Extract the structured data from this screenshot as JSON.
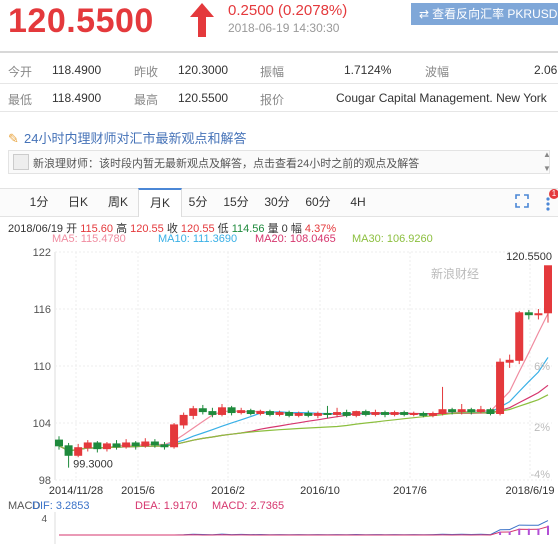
{
  "header": {
    "price": "120.5500",
    "change": "0.2500 (0.2078%)",
    "datetime": "2018-06-19 14:30:30",
    "reverse_button": "查看反向汇率 PKRUSD"
  },
  "quote": {
    "open_label": "今开",
    "open": "118.4900",
    "prev_close_label": "昨收",
    "prev_close": "120.3000",
    "amplitude_label": "振幅",
    "amplitude": "1.7124%",
    "wave_label": "波幅",
    "wave": "2.06",
    "low_label": "最低",
    "low": "118.4900",
    "high_label": "最高",
    "high": "120.5500",
    "quoter_label": "报价",
    "quoter": "Cougar Capital Management. New York"
  },
  "notice": {
    "title": "24小时内理财师对汇市最新观点和解答",
    "message": "新浪理财师：该时段内暂无最新观点及解答，点击查看24小时之前的观点及解答"
  },
  "tabs": [
    "1分",
    "日K",
    "周K",
    "月K",
    "5分",
    "15分",
    "30分",
    "60分",
    "4H"
  ],
  "active_tab": "月K",
  "badge_count": "1",
  "ohlc": {
    "date": "2018/06/19",
    "open_label": "开",
    "open": "115.60",
    "high_label": "高",
    "high": "120.55",
    "close_label": "收",
    "close": "120.55",
    "low_label": "低",
    "low": "114.56",
    "vol_label": "量",
    "vol": "0",
    "range_label": "幅",
    "range": "4.37%"
  },
  "ma": {
    "ma5": "MA5: 115.4780",
    "ma10": "MA10: 111.3690",
    "ma20": "MA20: 108.0465",
    "ma30": "MA30: 106.9260"
  },
  "macd": {
    "label": "MACD",
    "dif": "DIF: 3.2853",
    "dea": "DEA: 1.9170",
    "macd": "MACD: 2.7365",
    "axis_top": "4"
  },
  "colors": {
    "up": "#e4393c",
    "down": "#1e8a3c",
    "ma5": "#f08ca0",
    "ma10": "#3ab0e6",
    "ma20": "#d6366e",
    "ma30": "#8cbf3f"
  },
  "chart_data": {
    "type": "candlestick",
    "y_ticks": [
      "122",
      "116",
      "110",
      "104",
      "98"
    ],
    "pct_ticks": [
      "6%",
      "2%",
      "-4%"
    ],
    "x_ticks": [
      "2014/11/28",
      "2015/6",
      "2016/2",
      "2016/10",
      "2017/6",
      "2018/6/19"
    ],
    "ylim": [
      98,
      122
    ],
    "max_label": "120.5500",
    "min_label": "99.3000",
    "watermark": "新浪财经",
    "candles": [
      [
        102.2,
        101.6,
        102.6,
        101.2
      ],
      [
        101.6,
        100.6,
        101.9,
        99.3
      ],
      [
        100.6,
        101.4,
        101.8,
        100.4
      ],
      [
        101.4,
        101.9,
        102.2,
        101.0
      ],
      [
        101.9,
        101.3,
        102.1,
        100.9
      ],
      [
        101.3,
        101.8,
        102.0,
        101.0
      ],
      [
        101.8,
        101.5,
        102.2,
        101.2
      ],
      [
        101.5,
        101.9,
        102.3,
        101.3
      ],
      [
        101.9,
        101.6,
        102.1,
        101.2
      ],
      [
        101.6,
        102.0,
        102.4,
        101.4
      ],
      [
        102.0,
        101.7,
        102.3,
        101.4
      ],
      [
        101.7,
        101.5,
        102.0,
        101.2
      ],
      [
        101.5,
        103.8,
        104.0,
        101.3
      ],
      [
        103.8,
        104.8,
        105.1,
        103.4
      ],
      [
        104.8,
        105.5,
        105.8,
        104.4
      ],
      [
        105.5,
        105.2,
        105.9,
        104.9
      ],
      [
        105.2,
        104.9,
        105.6,
        104.6
      ],
      [
        104.9,
        105.6,
        106.0,
        104.7
      ],
      [
        105.6,
        105.1,
        105.8,
        104.8
      ],
      [
        105.1,
        105.3,
        105.6,
        104.9
      ],
      [
        105.3,
        105.0,
        105.5,
        104.8
      ],
      [
        105.0,
        105.2,
        105.4,
        104.8
      ],
      [
        105.2,
        104.9,
        105.4,
        104.7
      ],
      [
        104.9,
        105.1,
        105.3,
        104.7
      ],
      [
        105.1,
        104.8,
        105.3,
        104.6
      ],
      [
        104.8,
        105.0,
        105.2,
        104.6
      ],
      [
        105.0,
        104.8,
        105.3,
        104.6
      ],
      [
        104.8,
        105.0,
        105.2,
        104.5
      ],
      [
        105.0,
        104.9,
        105.8,
        104.5
      ],
      [
        104.9,
        105.1,
        105.6,
        104.6
      ],
      [
        105.1,
        104.8,
        105.4,
        104.6
      ],
      [
        104.8,
        105.2,
        105.3,
        104.6
      ],
      [
        105.2,
        104.9,
        105.4,
        104.7
      ],
      [
        104.9,
        105.1,
        105.4,
        104.7
      ],
      [
        105.1,
        104.9,
        105.3,
        104.6
      ],
      [
        104.9,
        105.1,
        105.3,
        104.7
      ],
      [
        105.1,
        104.9,
        105.3,
        104.7
      ],
      [
        104.9,
        105.0,
        105.2,
        104.7
      ],
      [
        105.0,
        104.8,
        105.2,
        104.6
      ],
      [
        104.8,
        105.0,
        105.2,
        104.6
      ],
      [
        105.0,
        105.4,
        107.8,
        104.8
      ],
      [
        105.4,
        105.2,
        105.6,
        104.9
      ],
      [
        105.2,
        105.4,
        106.0,
        104.9
      ],
      [
        105.4,
        105.2,
        105.6,
        104.9
      ],
      [
        105.2,
        105.4,
        105.8,
        105.0
      ],
      [
        105.4,
        105.0,
        105.6,
        104.8
      ],
      [
        105.0,
        110.4,
        110.8,
        104.8
      ],
      [
        110.4,
        110.6,
        111.2,
        109.8
      ],
      [
        110.6,
        115.6,
        115.8,
        110.2
      ],
      [
        115.6,
        115.4,
        115.9,
        114.9
      ],
      [
        115.4,
        115.5,
        116.0,
        114.9
      ],
      [
        115.6,
        120.55,
        120.55,
        114.56
      ]
    ]
  }
}
